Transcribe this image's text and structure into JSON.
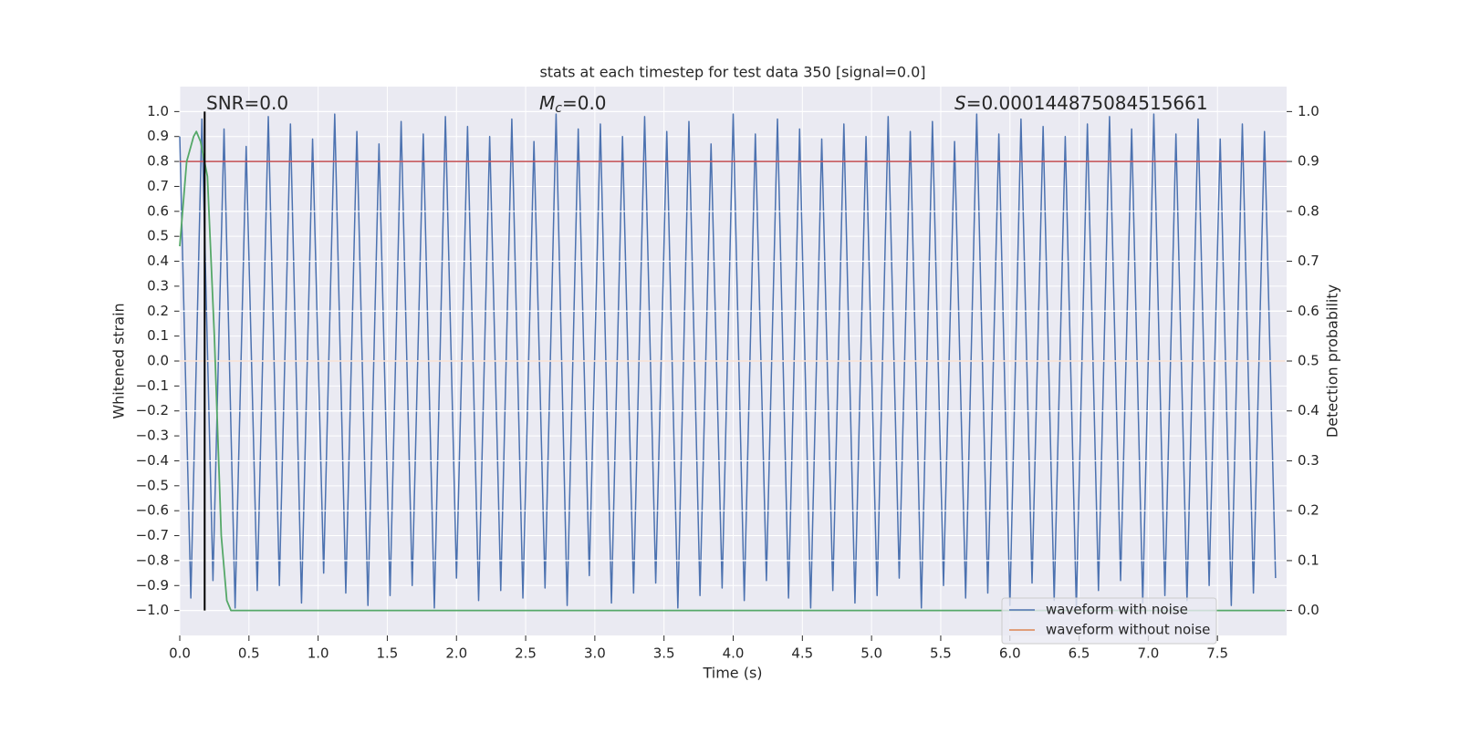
{
  "chart_data": {
    "type": "line",
    "title": "stats at each timestep for test data 350 [signal=0.0]",
    "xlabel": "Time (s)",
    "ylabel": "Whitened strain",
    "y2label": "Detection probability",
    "xlim": [
      0,
      8
    ],
    "ylim": [
      -1.1,
      1.1
    ],
    "y2lim": [
      -0.05,
      1.05
    ],
    "xticks": [
      {
        "value": 0,
        "label": "0.0"
      },
      {
        "value": 0.5,
        "label": "0.5"
      },
      {
        "value": 1,
        "label": "1.0"
      },
      {
        "value": 1.5,
        "label": "1.5"
      },
      {
        "value": 2,
        "label": "2.0"
      },
      {
        "value": 2.5,
        "label": "2.5"
      },
      {
        "value": 3,
        "label": "3.0"
      },
      {
        "value": 3.5,
        "label": "3.5"
      },
      {
        "value": 4,
        "label": "4.0"
      },
      {
        "value": 4.5,
        "label": "4.5"
      },
      {
        "value": 5,
        "label": "5.0"
      },
      {
        "value": 5.5,
        "label": "5.5"
      },
      {
        "value": 6,
        "label": "6.0"
      },
      {
        "value": 6.5,
        "label": "6.5"
      },
      {
        "value": 7,
        "label": "7.0"
      },
      {
        "value": 7.5,
        "label": "7.5"
      }
    ],
    "yticks": [
      {
        "value": -1,
        "label": "−1.0"
      },
      {
        "value": -0.9,
        "label": "−0.9"
      },
      {
        "value": -0.8,
        "label": "−0.8"
      },
      {
        "value": -0.7,
        "label": "−0.7"
      },
      {
        "value": -0.6,
        "label": "−0.6"
      },
      {
        "value": -0.5,
        "label": "−0.5"
      },
      {
        "value": -0.4,
        "label": "−0.4"
      },
      {
        "value": -0.3,
        "label": "−0.3"
      },
      {
        "value": -0.2,
        "label": "−0.2"
      },
      {
        "value": -0.1,
        "label": "−0.1"
      },
      {
        "value": 0,
        "label": "0.0"
      },
      0.1,
      0.2,
      0.3,
      0.4,
      0.5,
      0.6,
      0.7,
      0.8,
      0.9,
      {
        "value": 1,
        "label": "1.0"
      }
    ],
    "y2ticks": [
      {
        "value": 0,
        "label": "0.0"
      },
      0.1,
      0.2,
      0.3,
      0.4,
      0.5,
      0.6,
      0.7,
      0.8,
      0.9,
      {
        "value": 1,
        "label": "1.0"
      }
    ],
    "grid": true,
    "legend": "lower right",
    "series": [
      {
        "name": "waveform with noise",
        "color": "#4c72b0",
        "x": [
          0,
          0.08,
          0.16,
          0.24,
          0.32,
          0.4,
          0.48,
          0.56,
          0.64,
          0.72,
          0.8,
          0.88,
          0.96,
          1.04,
          1.12,
          1.2,
          1.28,
          1.36,
          1.44,
          1.52,
          1.6,
          1.68,
          1.76,
          1.84,
          1.92,
          2,
          2.08,
          2.16,
          2.24,
          2.32,
          2.4,
          2.48,
          2.56,
          2.64,
          2.72,
          2.8,
          2.88,
          2.96,
          3.04,
          3.12,
          3.2,
          3.28,
          3.36,
          3.44,
          3.52,
          3.6,
          3.68,
          3.76,
          3.84,
          3.92,
          4,
          4.08,
          4.16,
          4.24,
          4.32,
          4.4,
          4.48,
          4.56,
          4.64,
          4.72,
          4.8,
          4.88,
          4.96,
          5.04,
          5.12,
          5.2,
          5.28,
          5.36,
          5.44,
          5.52,
          5.6,
          5.68,
          5.76,
          5.84,
          5.92,
          6,
          6.08,
          6.16,
          6.24,
          6.32,
          6.4,
          6.48,
          6.56,
          6.64,
          6.72,
          6.8,
          6.88,
          6.96,
          7.04,
          7.12,
          7.2,
          7.28,
          7.36,
          7.44,
          7.52,
          7.6,
          7.68,
          7.76,
          7.84,
          7.92
        ],
        "values": [
          0.9,
          -0.95,
          0.97,
          -0.88,
          0.93,
          -0.99,
          0.86,
          -0.92,
          0.98,
          -0.9,
          0.95,
          -0.97,
          0.89,
          -0.85,
          0.99,
          -0.93,
          0.92,
          -0.98,
          0.87,
          -0.94,
          0.96,
          -0.9,
          0.91,
          -0.99,
          0.98,
          -0.87,
          0.94,
          -0.96,
          0.9,
          -0.92,
          0.97,
          -0.95,
          0.88,
          -0.91,
          0.99,
          -0.98,
          0.93,
          -0.86,
          0.95,
          -0.97,
          0.9,
          -0.93,
          0.98,
          -0.89,
          0.92,
          -0.99,
          0.96,
          -0.94,
          0.87,
          -0.91,
          0.99,
          -0.96,
          0.91,
          -0.88,
          0.97,
          -0.95,
          0.93,
          -0.99,
          0.89,
          -0.92,
          0.95,
          -0.97,
          0.9,
          -0.94,
          0.98,
          -0.87,
          0.92,
          -0.99,
          0.96,
          -0.9,
          0.88,
          -0.95,
          0.99,
          -0.93,
          0.91,
          -0.98,
          0.97,
          -0.89,
          0.94,
          -0.96,
          0.9,
          -0.99,
          0.95,
          -0.92,
          0.98,
          -0.88,
          0.93,
          -0.97,
          0.99,
          -0.94,
          0.91,
          -0.96,
          0.97,
          -0.9,
          0.89,
          -0.98,
          0.95,
          -0.93,
          0.92,
          -0.87
        ]
      },
      {
        "name": "waveform without noise",
        "color": "#dd8452",
        "x": [
          0,
          7.99
        ],
        "values": [
          0,
          0
        ]
      }
    ],
    "detection_probability": {
      "color": "#55a868",
      "axis": "y2",
      "x": [
        0,
        0.05,
        0.1,
        0.12,
        0.15,
        0.2,
        0.25,
        0.3,
        0.34,
        0.37,
        7.99
      ],
      "values": [
        0.73,
        0.9,
        0.95,
        0.96,
        0.94,
        0.87,
        0.55,
        0.15,
        0.02,
        0,
        0
      ]
    },
    "threshold": {
      "value": 0.9,
      "axis": "y2",
      "color": "#c44e52"
    },
    "marker_line": {
      "x": 0.18,
      "y": [
        -1,
        1
      ],
      "color": "#000000"
    },
    "annotations": [
      {
        "text": "SNR=0.0"
      },
      {
        "symbol": "M",
        "subscript": "c",
        "text": "=0.0"
      },
      {
        "symbol": "S",
        "text": "=0.000144875084515661"
      }
    ]
  }
}
